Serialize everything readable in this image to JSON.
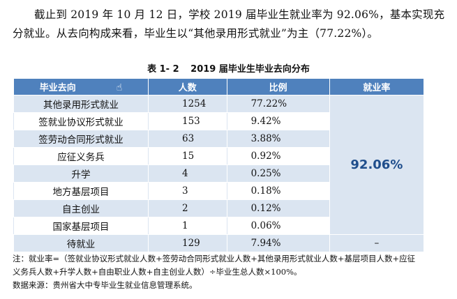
{
  "paragraph": {
    "line1": "截止到 2019 年 10 月 12 日，学校 2019 届毕业生就业率为 92.06%，基本实现充",
    "line2": "分就业。从去向构成来看，毕业生以“其他录用形式就业”为主（77.22%）。"
  },
  "caption": {
    "label": "表 1- 2",
    "title": "2019 届毕业生毕业去向分布"
  },
  "table": {
    "headers": [
      "毕业去向",
      "人数",
      "比例",
      "就业率"
    ],
    "rows": [
      {
        "destination": "其他录用形式就业",
        "count": "1254",
        "ratio": "77.22%"
      },
      {
        "destination": "签就业协议形式就业",
        "count": "153",
        "ratio": "9.42%"
      },
      {
        "destination": "签劳动合同形式就业",
        "count": "63",
        "ratio": "3.88%"
      },
      {
        "destination": "应征义务兵",
        "count": "15",
        "ratio": "0.92%"
      },
      {
        "destination": "升学",
        "count": "4",
        "ratio": "0.25%"
      },
      {
        "destination": "地方基层项目",
        "count": "3",
        "ratio": "0.18%"
      },
      {
        "destination": "自主创业",
        "count": "2",
        "ratio": "0.12%"
      },
      {
        "destination": "国家基层项目",
        "count": "1",
        "ratio": "0.06%"
      }
    ],
    "employment_rate": "92.06%",
    "unemployed": {
      "destination": "待就业",
      "count": "129",
      "ratio": "7.94%",
      "rate": "–"
    }
  },
  "notes": {
    "line1": "注：就业率=（签就业协议形式就业人数+签劳动合同形式就业人数+其他录用形式就业人数+基层项目人数+应征",
    "line2": "义务兵人数+升学人数+自由职业人数+自主创业人数）÷毕业生总人数×100%。",
    "line3": "数据来源：贵州省大中专毕业生就业信息管理系统。"
  },
  "icons": {
    "cursor": "hand-pointer-icon"
  }
}
